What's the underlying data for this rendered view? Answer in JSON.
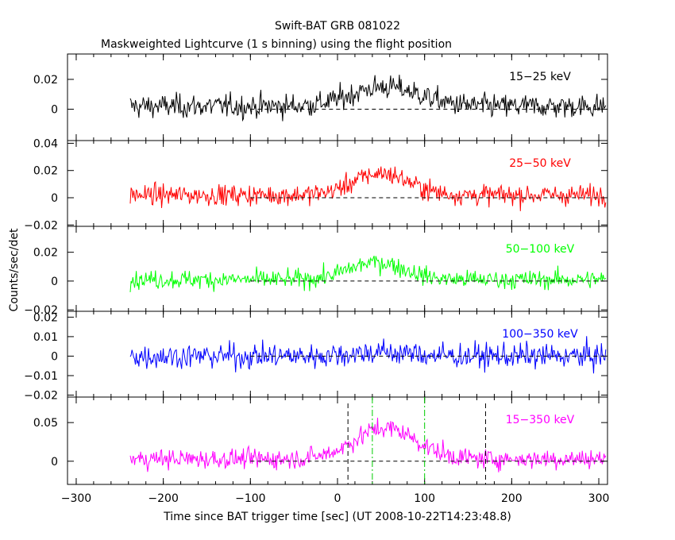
{
  "chart_data": {
    "type": "line",
    "title": "Swift-BAT GRB 081022",
    "subtitle": "Maskweighted Lightcurve (1 s binning) using the flight position",
    "xlabel": "Time since BAT trigger time [sec] (UT 2008-10-22T14:23:48.8)",
    "ylabel": "Counts/sec/det",
    "xlim": [
      -310,
      310
    ],
    "x_ticks": [
      -300,
      -200,
      -100,
      0,
      100,
      200,
      300
    ],
    "x_tick_labels": [
      "−300",
      "−200",
      "−100",
      "0",
      "100",
      "200",
      "300"
    ],
    "data_start": -238,
    "data_end": 308,
    "bin_seconds": 1,
    "panels": [
      {
        "name": "15-25 keV",
        "label": "15−25 keV",
        "color": "#000000",
        "ylim": [
          -0.021,
          0.037
        ],
        "y_ticks": [
          0,
          0.02
        ],
        "y_tick_labels": [
          "0",
          "0.02"
        ],
        "baseline": 0.002,
        "noise": 0.0072,
        "peak_amp": 0.013,
        "peak_center": 55,
        "peak_width": 55
      },
      {
        "name": "25-50 keV",
        "label": "25−50 keV",
        "color": "#ff0000",
        "ylim": [
          -0.021,
          0.042
        ],
        "y_ticks": [
          -0.02,
          0,
          0.02,
          0.04
        ],
        "y_tick_labels": [
          "−0.02",
          "0",
          "0.02",
          "0.04"
        ],
        "baseline": 0.002,
        "noise": 0.0068,
        "peak_amp": 0.016,
        "peak_center": 50,
        "peak_width": 45
      },
      {
        "name": "50-100 keV",
        "label": "50−100 keV",
        "color": "#00ff00",
        "ylim": [
          -0.021,
          0.038
        ],
        "y_ticks": [
          -0.02,
          0,
          0.02
        ],
        "y_tick_labels": [
          "−0.02",
          "0",
          "0.02"
        ],
        "baseline": 0.001,
        "noise": 0.0058,
        "peak_amp": 0.012,
        "peak_center": 45,
        "peak_width": 45
      },
      {
        "name": "100-350 keV",
        "label": "100−350 keV",
        "color": "#0000ff",
        "ylim": [
          -0.021,
          0.023
        ],
        "y_ticks": [
          -0.02,
          -0.01,
          0,
          0.01,
          0.02
        ],
        "y_tick_labels": [
          "−0.02",
          "−0.01",
          "0",
          "0.01",
          "0.02"
        ],
        "baseline": 0.0,
        "noise": 0.0058,
        "peak_amp": 0.002,
        "peak_center": 50,
        "peak_width": 50
      },
      {
        "name": "15-350 keV",
        "label": "15−350 keV",
        "color": "#ff00ff",
        "ylim": [
          -0.03,
          0.083
        ],
        "y_ticks": [
          0,
          0.05
        ],
        "y_tick_labels": [
          "0",
          "0.05"
        ],
        "baseline": 0.003,
        "noise": 0.0115,
        "peak_amp": 0.04,
        "peak_center": 55,
        "peak_width": 50
      }
    ],
    "markers": {
      "black_dashed": [
        12,
        170
      ],
      "green_dashdot": [
        40,
        100
      ]
    },
    "zero_line_start": -100
  }
}
